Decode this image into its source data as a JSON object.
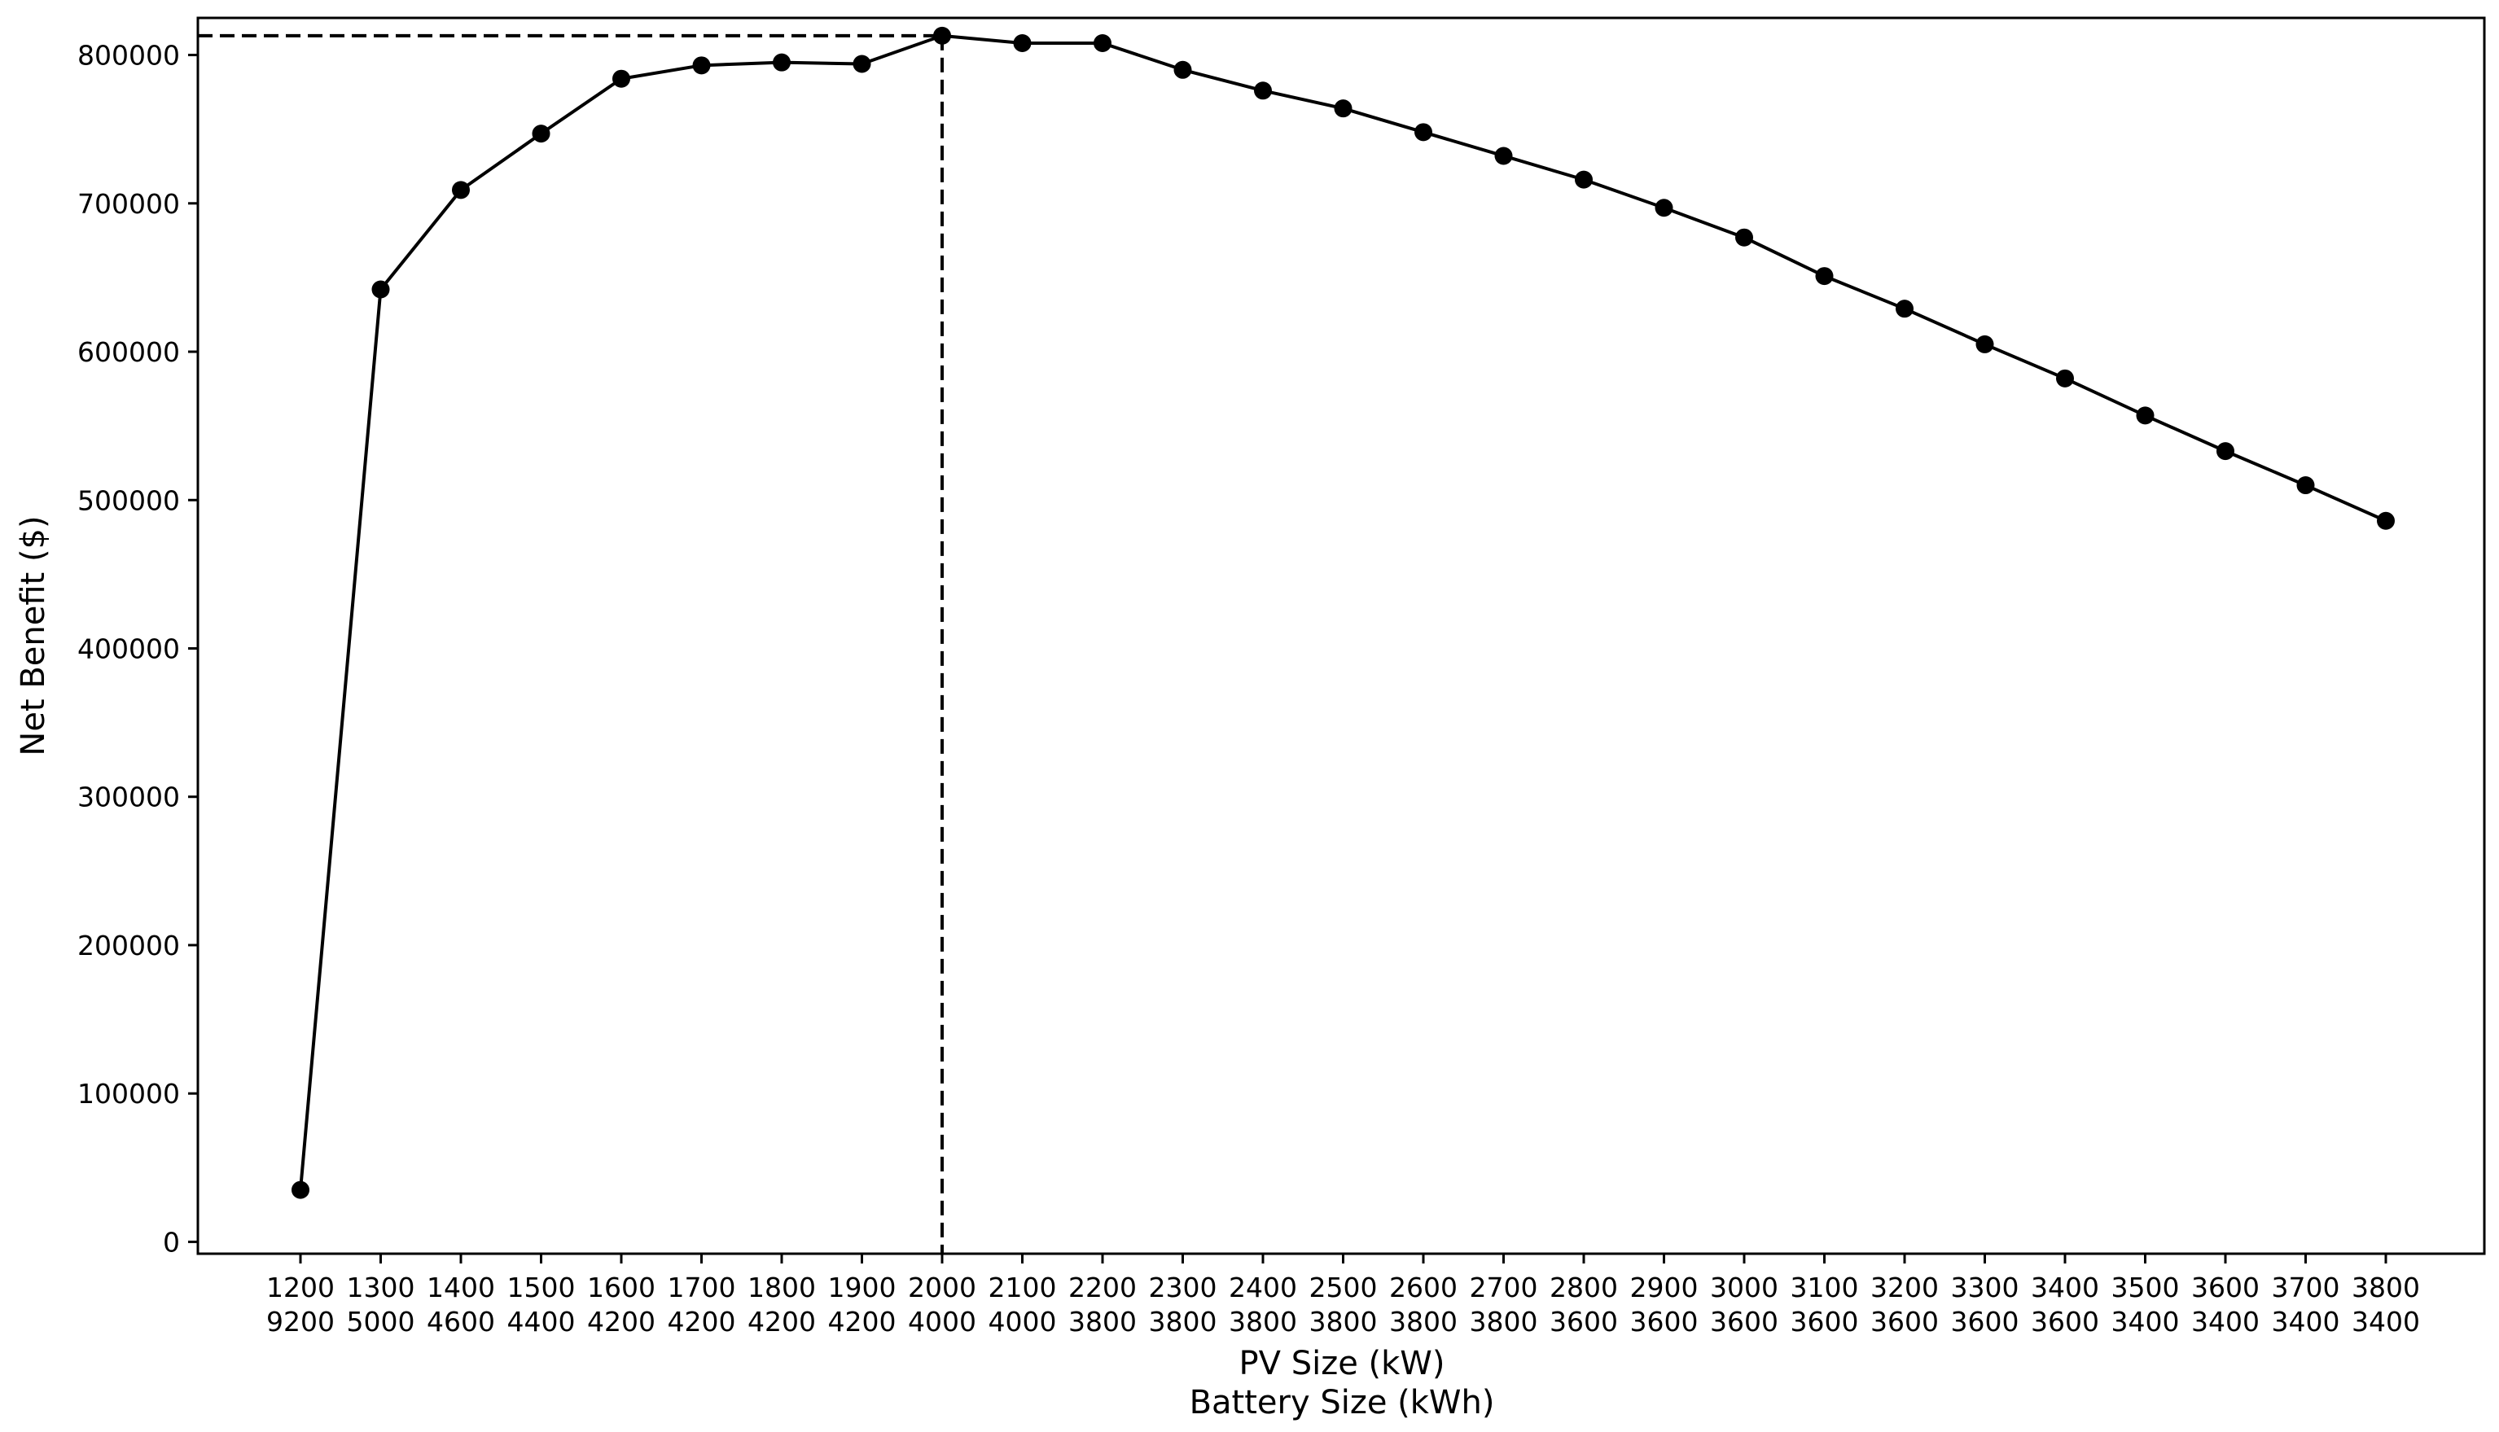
{
  "chart_data": {
    "type": "line",
    "title": "",
    "xlabel_lines": [
      "PV Size (kW)",
      "Battery Size (kWh)"
    ],
    "ylabel": "Net Benefit ($)",
    "ylim": [
      -8000,
      825000
    ],
    "yticks": [
      {
        "value": 0,
        "label": "0"
      },
      {
        "value": 100000,
        "label": "100000"
      },
      {
        "value": 200000,
        "label": "200000"
      },
      {
        "value": 300000,
        "label": "300000"
      },
      {
        "value": 400000,
        "label": "400000"
      },
      {
        "value": 500000,
        "label": "500000"
      },
      {
        "value": 600000,
        "label": "600000"
      },
      {
        "value": 700000,
        "label": "700000"
      },
      {
        "value": 800000,
        "label": "800000"
      }
    ],
    "categories": [
      {
        "pv": "1200",
        "battery": "9200"
      },
      {
        "pv": "1300",
        "battery": "5000"
      },
      {
        "pv": "1400",
        "battery": "4600"
      },
      {
        "pv": "1500",
        "battery": "4400"
      },
      {
        "pv": "1600",
        "battery": "4200"
      },
      {
        "pv": "1700",
        "battery": "4200"
      },
      {
        "pv": "1800",
        "battery": "4200"
      },
      {
        "pv": "1900",
        "battery": "4200"
      },
      {
        "pv": "2000",
        "battery": "4000"
      },
      {
        "pv": "2100",
        "battery": "4000"
      },
      {
        "pv": "2200",
        "battery": "3800"
      },
      {
        "pv": "2300",
        "battery": "3800"
      },
      {
        "pv": "2400",
        "battery": "3800"
      },
      {
        "pv": "2500",
        "battery": "3800"
      },
      {
        "pv": "2600",
        "battery": "3800"
      },
      {
        "pv": "2700",
        "battery": "3800"
      },
      {
        "pv": "2800",
        "battery": "3600"
      },
      {
        "pv": "2900",
        "battery": "3600"
      },
      {
        "pv": "3000",
        "battery": "3600"
      },
      {
        "pv": "3100",
        "battery": "3600"
      },
      {
        "pv": "3200",
        "battery": "3600"
      },
      {
        "pv": "3300",
        "battery": "3600"
      },
      {
        "pv": "3400",
        "battery": "3600"
      },
      {
        "pv": "3500",
        "battery": "3400"
      },
      {
        "pv": "3600",
        "battery": "3400"
      },
      {
        "pv": "3700",
        "battery": "3400"
      },
      {
        "pv": "3800",
        "battery": "3400"
      }
    ],
    "values": [
      35000,
      642000,
      709000,
      747000,
      784000,
      793000,
      795000,
      794000,
      813000,
      808000,
      808000,
      790000,
      776000,
      764000,
      748000,
      732000,
      716000,
      697000,
      677000,
      651000,
      629000,
      605000,
      582000,
      557000,
      533000,
      510000,
      486000
    ],
    "optimum_index": 8,
    "line_color": "#000000",
    "marker_color": "#000000",
    "grid": false,
    "legend": "none"
  }
}
